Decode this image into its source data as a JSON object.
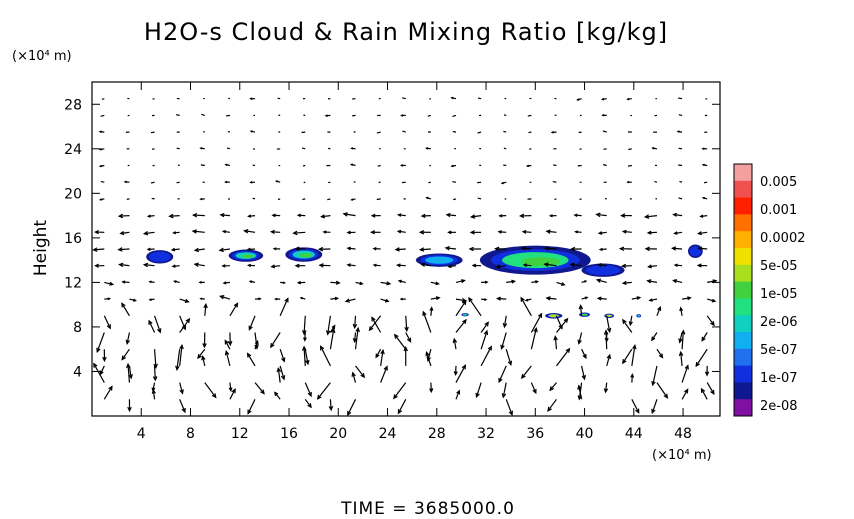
{
  "chart_data": {
    "type": "heatmap",
    "title": "H2O-s Cloud & Rain Mixing Ratio [kg/kg]",
    "ylabel": "Height",
    "y_unit": "(×10⁴ m)",
    "x_unit": "(×10⁴ m)",
    "footer": "TIME  =  3685000.0",
    "xlim": [
      0,
      51
    ],
    "ylim": [
      0,
      30
    ],
    "x_ticks": [
      4,
      8,
      12,
      16,
      20,
      24,
      28,
      32,
      36,
      40,
      44,
      48
    ],
    "y_ticks": [
      4,
      8,
      12,
      16,
      20,
      24,
      28
    ],
    "colorbar": {
      "labels": [
        "0.005",
        "0.001",
        "0.0002",
        "5e-05",
        "1e-05",
        "2e-06",
        "5e-07",
        "1e-07",
        "2e-08"
      ],
      "colors": [
        "#f4a0a0",
        "#f05050",
        "#ff2000",
        "#ff7000",
        "#ffb000",
        "#f0e000",
        "#a8e020",
        "#40d040",
        "#20e080",
        "#10d0c0",
        "#10b0f0",
        "#2070f0",
        "#1030e0",
        "#101890",
        "#8010a0"
      ]
    },
    "cloud_blobs": [
      {
        "x": 5.5,
        "y": 14.3,
        "w": 2.2,
        "h": 1.2,
        "level": "1e-07"
      },
      {
        "x": 12.5,
        "y": 14.4,
        "w": 2.8,
        "h": 1.1,
        "level": "2e-06"
      },
      {
        "x": 17.2,
        "y": 14.5,
        "w": 3.0,
        "h": 1.3,
        "level": "2e-06"
      },
      {
        "x": 28.2,
        "y": 14.0,
        "w": 3.8,
        "h": 1.2,
        "level": "5e-07"
      },
      {
        "x": 36.0,
        "y": 14.0,
        "w": 9.0,
        "h": 2.6,
        "level": "5e-06"
      },
      {
        "x": 41.5,
        "y": 13.1,
        "w": 3.5,
        "h": 1.2,
        "level": "1e-07"
      },
      {
        "x": 49.0,
        "y": 14.8,
        "w": 1.2,
        "h": 1.2,
        "level": "1e-07"
      },
      {
        "x": 37.5,
        "y": 9.0,
        "w": 1.4,
        "h": 0.5,
        "level": "5e-05"
      },
      {
        "x": 40.0,
        "y": 9.1,
        "w": 0.9,
        "h": 0.4,
        "level": "1e-05"
      },
      {
        "x": 42.0,
        "y": 9.0,
        "w": 0.8,
        "h": 0.4,
        "level": "5e-05"
      },
      {
        "x": 30.3,
        "y": 9.1,
        "w": 0.6,
        "h": 0.3,
        "level": "2e-06"
      },
      {
        "x": 44.4,
        "y": 9.0,
        "w": 0.4,
        "h": 0.3,
        "level": "5e-07"
      }
    ]
  }
}
